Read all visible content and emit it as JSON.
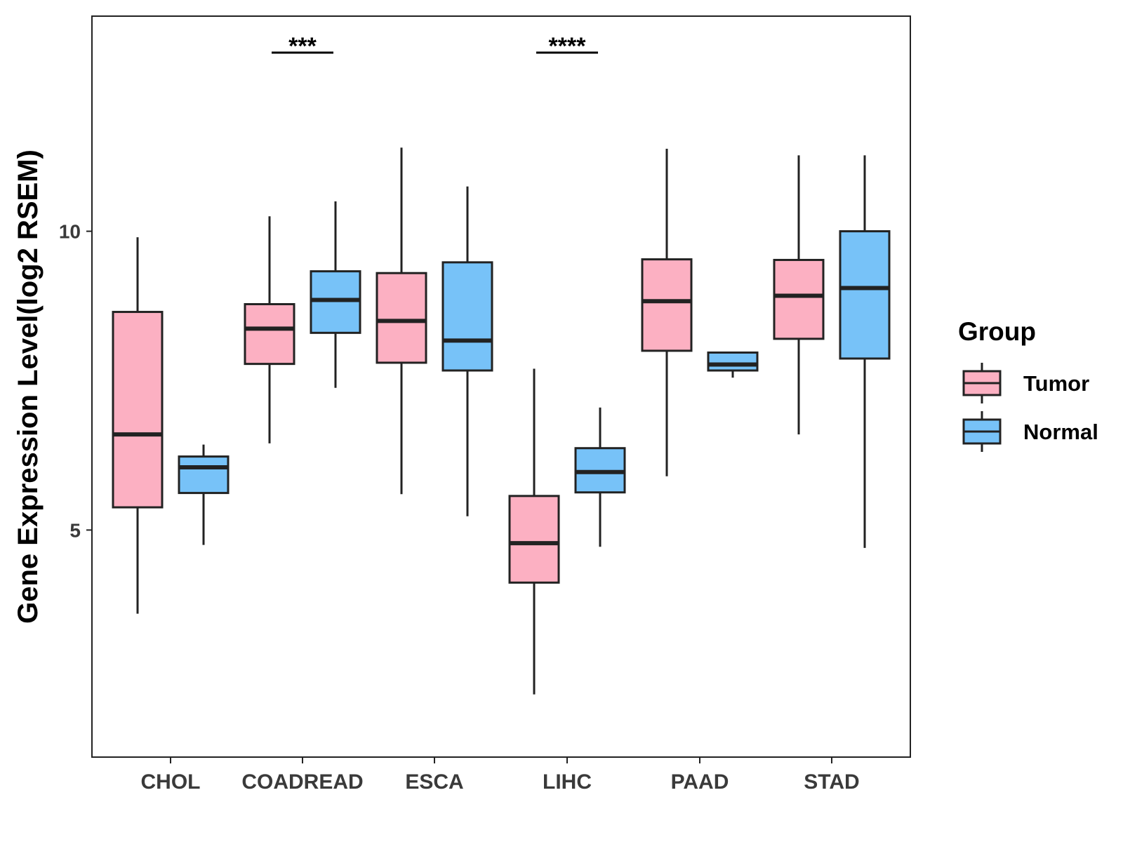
{
  "chart_data": {
    "type": "boxplot",
    "title": "",
    "xlabel": "",
    "ylabel": "Gene Expression Level(log2 RSEM)",
    "ylim": [
      1.2,
      13.6
    ],
    "yticks": [
      5,
      10
    ],
    "categories": [
      "CHOL",
      "COADREAD",
      "ESCA",
      "LIHC",
      "PAAD",
      "STAD"
    ],
    "legend": {
      "title": "Group",
      "position": "right",
      "entries": [
        {
          "name": "Tumor",
          "color": "#FCB0C2"
        },
        {
          "name": "Normal",
          "color": "#77C2F8"
        }
      ]
    },
    "series": [
      {
        "name": "Tumor",
        "color": "#FCB0C2",
        "boxes": [
          {
            "category": "CHOL",
            "whisker_low": 3.6,
            "q1": 5.38,
            "median": 6.6,
            "q3": 8.65,
            "whisker_high": 9.9
          },
          {
            "category": "COADREAD",
            "whisker_low": 6.45,
            "q1": 7.78,
            "median": 8.37,
            "q3": 8.78,
            "whisker_high": 10.25
          },
          {
            "category": "ESCA",
            "whisker_low": 5.6,
            "q1": 7.8,
            "median": 8.5,
            "q3": 9.3,
            "whisker_high": 11.4
          },
          {
            "category": "LIHC",
            "whisker_low": 2.25,
            "q1": 4.12,
            "median": 4.78,
            "q3": 5.57,
            "whisker_high": 7.7
          },
          {
            "category": "PAAD",
            "whisker_low": 5.9,
            "q1": 8.0,
            "median": 8.83,
            "q3": 9.53,
            "whisker_high": 11.38
          },
          {
            "category": "STAD",
            "whisker_low": 6.6,
            "q1": 8.2,
            "median": 8.92,
            "q3": 9.52,
            "whisker_high": 11.27
          }
        ]
      },
      {
        "name": "Normal",
        "color": "#77C2F8",
        "boxes": [
          {
            "category": "CHOL",
            "whisker_low": 4.75,
            "q1": 5.62,
            "median": 6.05,
            "q3": 6.23,
            "whisker_high": 6.43
          },
          {
            "category": "COADREAD",
            "whisker_low": 7.38,
            "q1": 8.3,
            "median": 8.85,
            "q3": 9.33,
            "whisker_high": 10.5
          },
          {
            "category": "ESCA",
            "whisker_low": 5.23,
            "q1": 7.67,
            "median": 8.17,
            "q3": 9.48,
            "whisker_high": 10.75
          },
          {
            "category": "LIHC",
            "whisker_low": 4.72,
            "q1": 5.63,
            "median": 5.97,
            "q3": 6.37,
            "whisker_high": 7.05
          },
          {
            "category": "PAAD",
            "whisker_low": 7.55,
            "q1": 7.67,
            "median": 7.77,
            "q3": 7.97,
            "whisker_high": 7.97
          },
          {
            "category": "STAD",
            "whisker_low": 4.7,
            "q1": 7.87,
            "median": 9.05,
            "q3": 10.0,
            "whisker_high": 11.27
          }
        ]
      }
    ],
    "annotations": [
      {
        "category": "COADREAD",
        "label": "***"
      },
      {
        "category": "LIHC",
        "label": "****"
      }
    ]
  }
}
